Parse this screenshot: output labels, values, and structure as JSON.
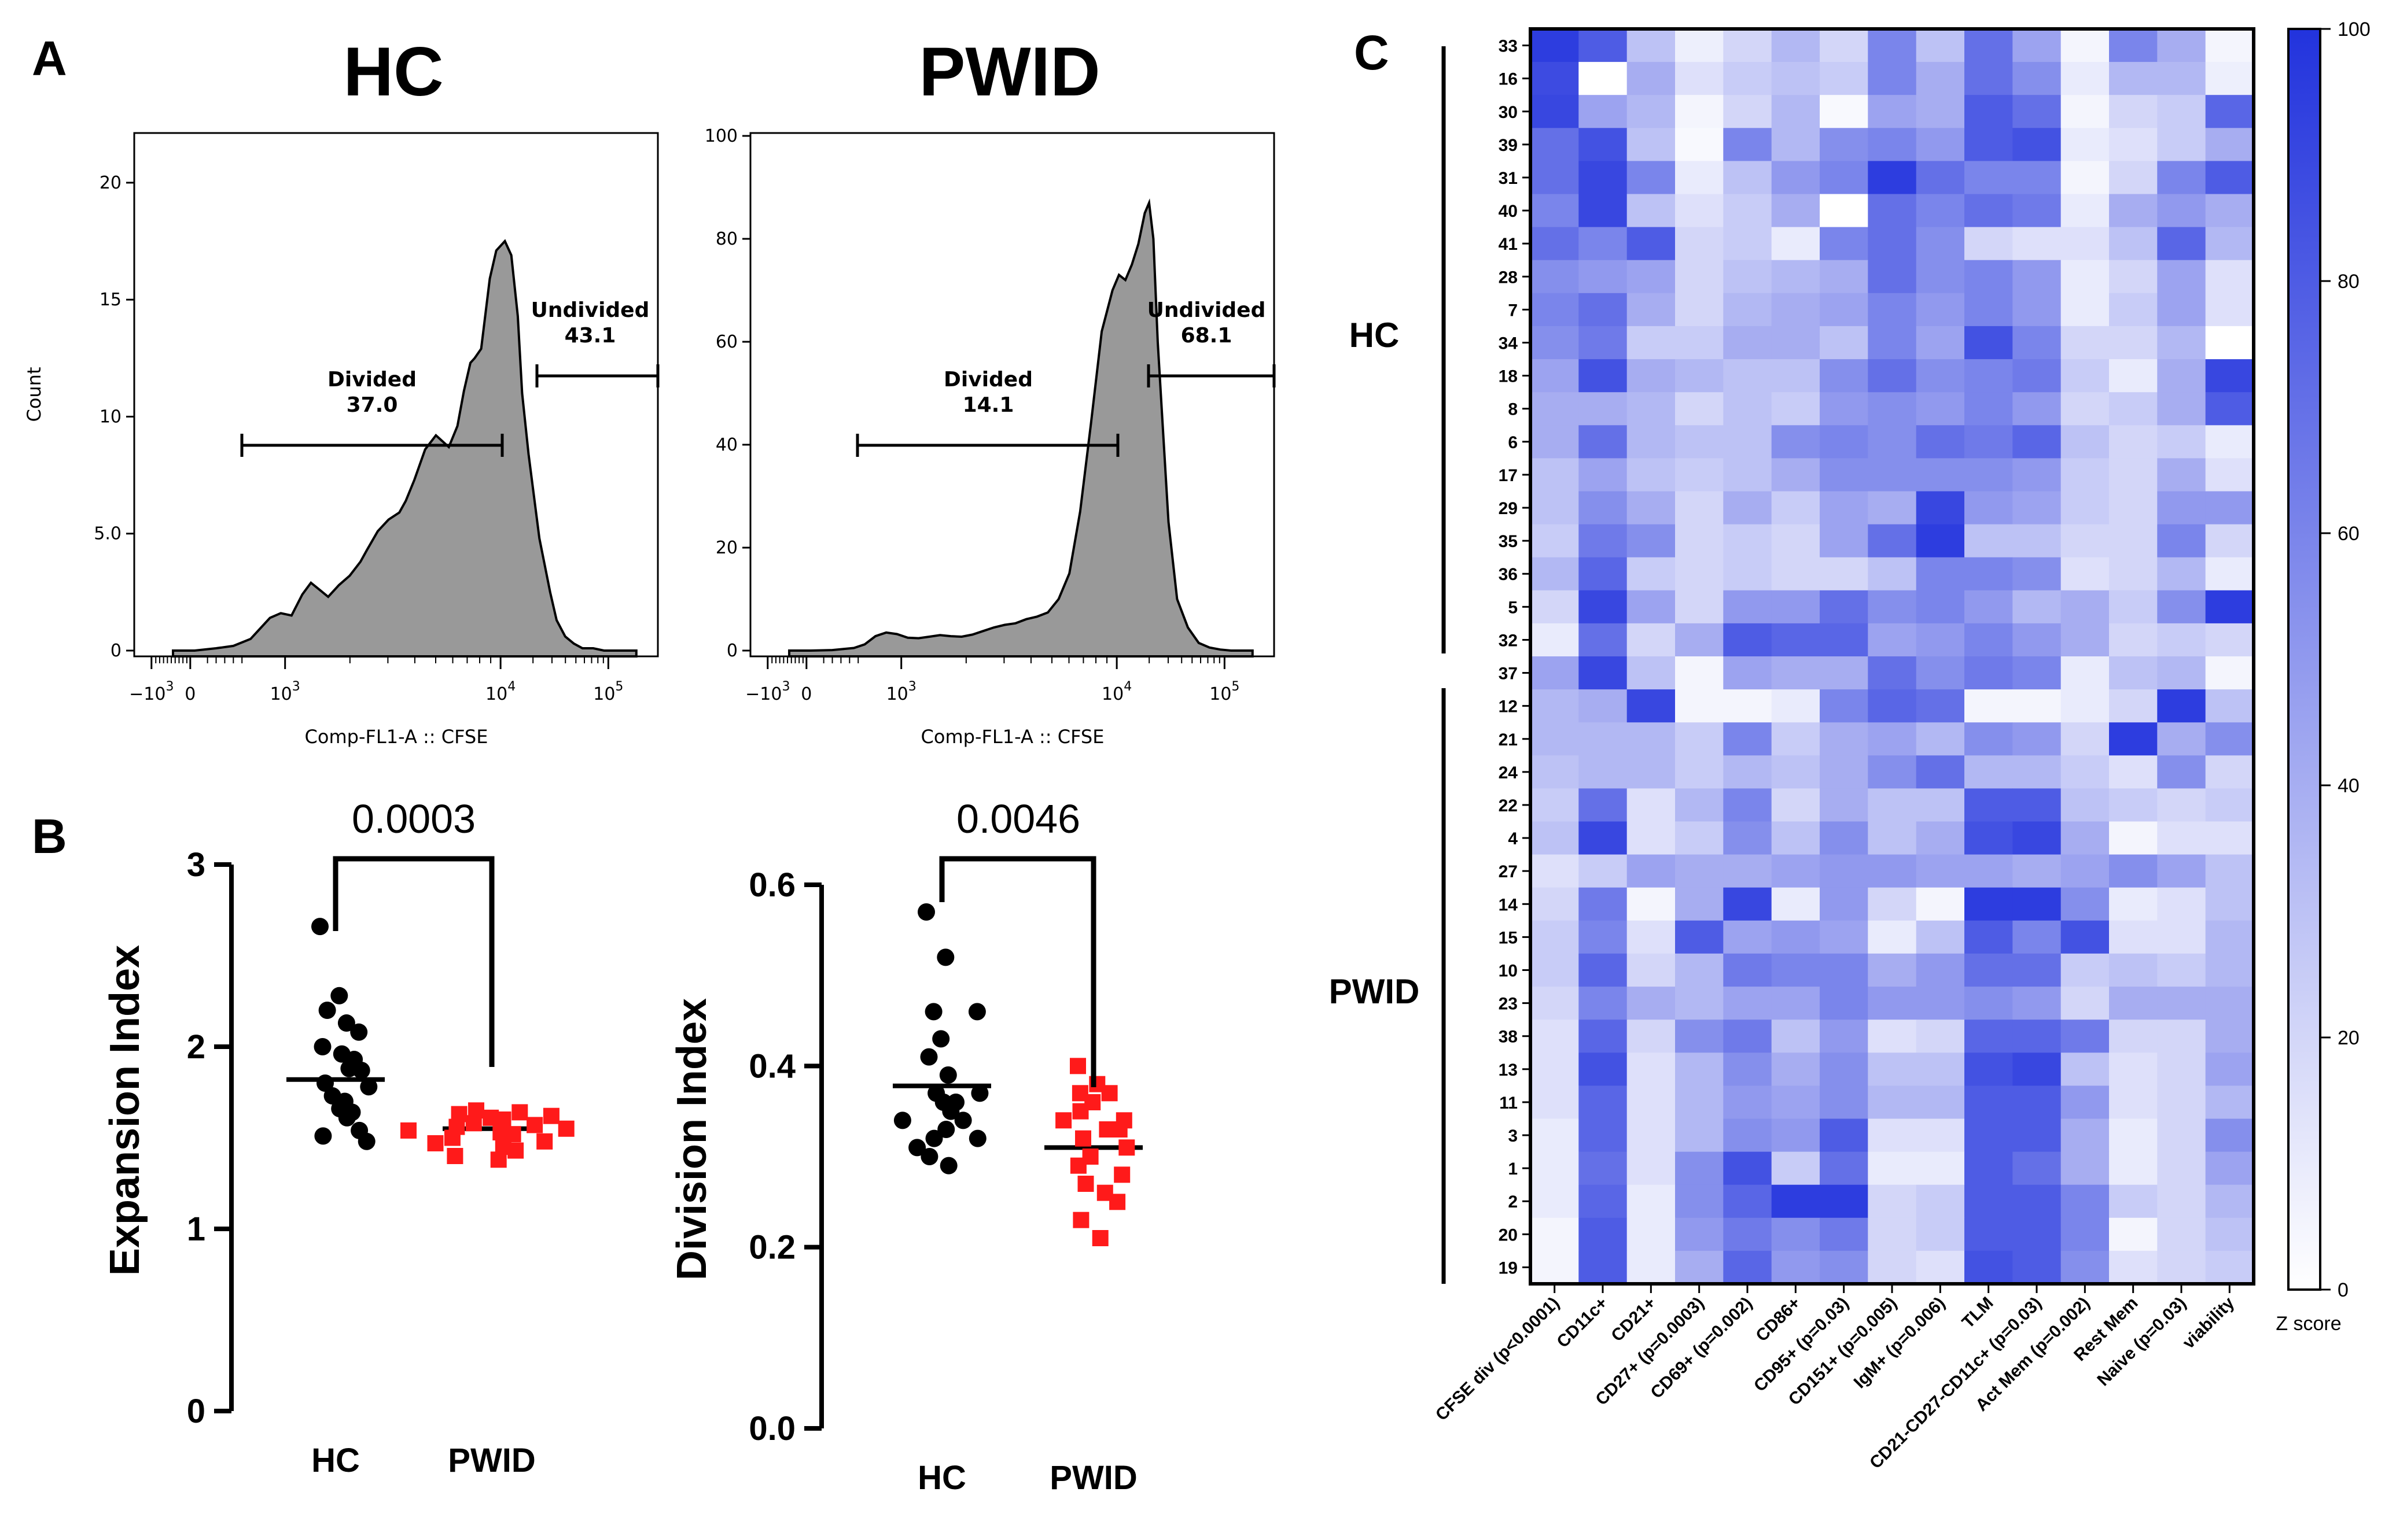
{
  "panels": {
    "a": "A",
    "b": "B",
    "c": "C"
  },
  "chart_data": [
    {
      "type": "area",
      "id": "hist_hc",
      "title": "HC",
      "xlabel": "Comp-FL1-A :: CFSE",
      "ylabel": "Count",
      "ylim": [
        0,
        22
      ],
      "yticks": [
        0,
        5,
        10,
        15,
        20
      ],
      "ytick_labels": [
        "0",
        "5.0",
        "10",
        "15",
        "20"
      ],
      "xticks": [
        "-10^3",
        "0",
        "10^3",
        "10^4",
        "10^5"
      ],
      "x": [
        0.1,
        0.2,
        0.3,
        0.38,
        0.46,
        0.5,
        0.55,
        0.6,
        0.65,
        0.7,
        0.74,
        0.78,
        0.82,
        0.87,
        0.92,
        0.97,
        1.0,
        1.05,
        1.1,
        1.15,
        1.18,
        1.22,
        1.27,
        1.32,
        1.38,
        1.42,
        1.45,
        1.48,
        1.5,
        1.53,
        1.57,
        1.6,
        1.64,
        1.67,
        1.7,
        1.72,
        1.75,
        1.8,
        1.85,
        1.88,
        1.92,
        1.96,
        2.0,
        2.05,
        2.1,
        2.15,
        2.2,
        2.25
      ],
      "y": [
        0.0,
        0.0,
        0.1,
        0.2,
        0.5,
        0.9,
        1.4,
        1.6,
        1.5,
        2.4,
        2.9,
        2.6,
        2.3,
        2.8,
        3.2,
        3.8,
        4.3,
        5.1,
        5.6,
        5.9,
        6.4,
        7.3,
        8.6,
        9.2,
        8.7,
        9.6,
        11.1,
        12.3,
        12.5,
        12.9,
        15.9,
        17.1,
        17.5,
        16.9,
        14.3,
        11.0,
        8.4,
        4.8,
        2.5,
        1.3,
        0.6,
        0.3,
        0.1,
        0.1,
        0.0,
        0.0,
        0.0,
        0.0
      ],
      "gates": [
        {
          "name": "Divided",
          "value": "37.0"
        },
        {
          "name": "Undivided",
          "value": "43.1"
        }
      ]
    },
    {
      "type": "area",
      "id": "hist_pwid",
      "title": "PWID",
      "xlabel": "Comp-FL1-A :: CFSE",
      "ylabel": "",
      "ylim": [
        0,
        100
      ],
      "yticks": [
        0,
        20,
        40,
        60,
        80,
        100
      ],
      "ytick_labels": [
        "0",
        "20",
        "40",
        "60",
        "80",
        "100"
      ],
      "xticks": [
        "-10^3",
        "0",
        "10^3",
        "10^4",
        "10^5"
      ],
      "x": [
        0.1,
        0.2,
        0.3,
        0.4,
        0.45,
        0.5,
        0.55,
        0.6,
        0.65,
        0.7,
        0.75,
        0.8,
        0.85,
        0.9,
        0.95,
        1.0,
        1.05,
        1.1,
        1.15,
        1.2,
        1.25,
        1.3,
        1.35,
        1.4,
        1.45,
        1.5,
        1.55,
        1.6,
        1.63,
        1.66,
        1.69,
        1.72,
        1.75,
        1.77,
        1.79,
        1.81,
        1.83,
        1.86,
        1.9,
        1.95,
        2.0,
        2.05,
        2.1,
        2.15,
        2.2,
        2.25
      ],
      "y": [
        0.0,
        0.0,
        0.1,
        0.5,
        1.2,
        2.8,
        3.5,
        3.2,
        2.5,
        2.4,
        2.7,
        3.0,
        2.8,
        2.7,
        3.1,
        3.8,
        4.5,
        5.0,
        5.3,
        6.1,
        6.6,
        7.4,
        10.0,
        15.0,
        27.0,
        44.0,
        62.0,
        70.0,
        73.0,
        72.0,
        75.0,
        79.0,
        85.0,
        87.0,
        80.0,
        60.0,
        46.0,
        25.0,
        10.0,
        4.5,
        1.5,
        0.6,
        0.2,
        0.0,
        0.0,
        0.0
      ],
      "gates": [
        {
          "name": "Divided",
          "value": "14.1"
        },
        {
          "name": "Undivided",
          "value": "68.1"
        }
      ]
    },
    {
      "type": "scatter",
      "id": "expansion",
      "ylabel": "Expansion Index",
      "ylim": [
        0,
        3
      ],
      "yticks": [
        "0",
        "1",
        "2",
        "3"
      ],
      "categories": [
        "HC",
        "PWID"
      ],
      "p_value": "0.0003",
      "series": [
        {
          "name": "HC",
          "color": "#000000",
          "marker": "circle",
          "mean": 1.82,
          "values": [
            2.66,
            2.28,
            2.2,
            2.13,
            2.08,
            2.0,
            1.96,
            1.93,
            1.88,
            1.87,
            1.8,
            1.78,
            1.73,
            1.7,
            1.66,
            1.64,
            1.61,
            1.54,
            1.51,
            1.48
          ]
        },
        {
          "name": "PWID",
          "color": "#ff1a1a",
          "marker": "square",
          "mean": 1.55,
          "values": [
            1.65,
            1.64,
            1.63,
            1.62,
            1.61,
            1.6,
            1.58,
            1.57,
            1.56,
            1.55,
            1.54,
            1.53,
            1.52,
            1.5,
            1.48,
            1.47,
            1.45,
            1.43,
            1.4,
            1.38
          ]
        }
      ]
    },
    {
      "type": "scatter",
      "id": "division",
      "ylabel": "Division Index",
      "ylim": [
        0,
        0.6
      ],
      "yticks": [
        "0.0",
        "0.2",
        "0.4",
        "0.6"
      ],
      "categories": [
        "HC",
        "PWID"
      ],
      "p_value": "0.0046",
      "series": [
        {
          "name": "HC",
          "color": "#000000",
          "marker": "circle",
          "mean": 0.378,
          "values": [
            0.57,
            0.52,
            0.46,
            0.46,
            0.43,
            0.41,
            0.39,
            0.37,
            0.37,
            0.36,
            0.36,
            0.35,
            0.34,
            0.34,
            0.33,
            0.32,
            0.32,
            0.31,
            0.3,
            0.29
          ]
        },
        {
          "name": "PWID",
          "color": "#ff1a1a",
          "marker": "square",
          "mean": 0.31,
          "values": [
            0.4,
            0.38,
            0.37,
            0.37,
            0.36,
            0.35,
            0.34,
            0.34,
            0.33,
            0.33,
            0.32,
            0.31,
            0.3,
            0.29,
            0.28,
            0.27,
            0.26,
            0.25,
            0.23,
            0.21
          ]
        }
      ]
    },
    {
      "type": "heatmap",
      "id": "heatmap",
      "colorbar": {
        "label": "Z score",
        "min": 0,
        "max": 100,
        "ticks": [
          "0",
          "20",
          "40",
          "60",
          "80",
          "100"
        ],
        "color_low": "#ffffff",
        "color_high": "#2233dd"
      },
      "groups": [
        {
          "name": "HC",
          "rows": [
            "33",
            "16",
            "30",
            "39",
            "31",
            "40",
            "41",
            "28",
            "7",
            "34",
            "18",
            "8",
            "6",
            "17",
            "29",
            "35",
            "36",
            "5",
            "32"
          ]
        },
        {
          "name": "PWID",
          "rows": [
            "37",
            "12",
            "21",
            "24",
            "22",
            "4",
            "27",
            "14",
            "15",
            "10",
            "23",
            "38",
            "13",
            "11",
            "3",
            "1",
            "2",
            "20",
            "19"
          ]
        }
      ],
      "rows": [
        "33",
        "16",
        "30",
        "39",
        "31",
        "40",
        "41",
        "28",
        "7",
        "34",
        "18",
        "8",
        "6",
        "17",
        "29",
        "35",
        "36",
        "5",
        "32",
        "37",
        "12",
        "21",
        "24",
        "22",
        "4",
        "27",
        "14",
        "15",
        "10",
        "23",
        "38",
        "13",
        "11",
        "3",
        "1",
        "2",
        "20",
        "19"
      ],
      "columns": [
        "CFSE div (p<0.0001)",
        "CD11c+",
        "CD21+",
        "CD27+ (p=0.0003)",
        "CD69+ (p=0.002)",
        "CD86+",
        "CD95+ (p=0.03)",
        "CD151+ (p=0.005)",
        "IgM+ (p=0.006)",
        "TLM",
        "CD21-CD27-CD11c+ (p=0.03)",
        "Act Mem (p=0.002)",
        "Rest Mem",
        "Naive (p=0.03)",
        "viability"
      ],
      "values": [
        [
          95,
          80,
          30,
          8,
          20,
          35,
          20,
          60,
          30,
          70,
          45,
          5,
          60,
          40,
          5
        ],
        [
          88,
          0,
          40,
          15,
          25,
          30,
          25,
          60,
          40,
          70,
          55,
          10,
          35,
          35,
          8
        ],
        [
          90,
          45,
          35,
          5,
          20,
          35,
          3,
          45,
          40,
          80,
          70,
          5,
          20,
          25,
          75
        ],
        [
          70,
          85,
          30,
          3,
          60,
          35,
          55,
          60,
          50,
          80,
          85,
          10,
          15,
          25,
          40
        ],
        [
          70,
          90,
          60,
          10,
          30,
          50,
          60,
          95,
          70,
          60,
          60,
          5,
          20,
          60,
          80
        ],
        [
          60,
          90,
          30,
          15,
          25,
          40,
          0,
          70,
          60,
          70,
          65,
          10,
          40,
          50,
          40
        ],
        [
          70,
          60,
          80,
          20,
          25,
          10,
          60,
          70,
          55,
          20,
          15,
          15,
          30,
          75,
          35
        ],
        [
          55,
          50,
          45,
          20,
          30,
          35,
          40,
          70,
          55,
          60,
          50,
          10,
          20,
          45,
          15
        ],
        [
          60,
          70,
          40,
          20,
          35,
          40,
          45,
          60,
          50,
          60,
          50,
          10,
          25,
          45,
          15
        ],
        [
          55,
          65,
          25,
          25,
          40,
          40,
          30,
          60,
          45,
          85,
          60,
          20,
          20,
          35,
          0
        ],
        [
          45,
          85,
          40,
          35,
          30,
          30,
          55,
          70,
          55,
          60,
          65,
          25,
          10,
          40,
          90
        ],
        [
          40,
          40,
          35,
          20,
          30,
          25,
          50,
          55,
          50,
          60,
          50,
          20,
          25,
          40,
          80
        ],
        [
          40,
          70,
          35,
          30,
          30,
          55,
          60,
          55,
          70,
          65,
          75,
          30,
          20,
          25,
          10
        ],
        [
          30,
          45,
          30,
          25,
          30,
          40,
          55,
          55,
          55,
          55,
          50,
          25,
          20,
          40,
          15
        ],
        [
          30,
          55,
          40,
          20,
          40,
          25,
          45,
          40,
          90,
          50,
          45,
          25,
          20,
          50,
          50
        ],
        [
          25,
          65,
          55,
          20,
          25,
          20,
          45,
          70,
          95,
          30,
          30,
          20,
          20,
          60,
          20
        ],
        [
          35,
          75,
          25,
          20,
          25,
          20,
          20,
          30,
          60,
          60,
          55,
          15,
          20,
          35,
          10
        ],
        [
          20,
          90,
          45,
          20,
          50,
          50,
          70,
          55,
          60,
          50,
          35,
          40,
          25,
          55,
          95
        ],
        [
          10,
          70,
          20,
          40,
          80,
          75,
          75,
          45,
          50,
          60,
          50,
          40,
          20,
          25,
          20
        ],
        [
          45,
          90,
          30,
          5,
          45,
          40,
          40,
          70,
          55,
          65,
          60,
          10,
          30,
          35,
          5
        ],
        [
          35,
          40,
          90,
          5,
          5,
          10,
          60,
          75,
          70,
          5,
          5,
          10,
          20,
          95,
          30
        ],
        [
          35,
          35,
          35,
          25,
          60,
          25,
          40,
          45,
          35,
          55,
          50,
          20,
          95,
          40,
          55
        ],
        [
          30,
          35,
          35,
          25,
          35,
          30,
          40,
          55,
          70,
          35,
          35,
          25,
          15,
          55,
          20
        ],
        [
          25,
          70,
          15,
          35,
          60,
          20,
          40,
          30,
          30,
          80,
          80,
          30,
          25,
          20,
          25
        ],
        [
          30,
          90,
          15,
          25,
          55,
          30,
          55,
          30,
          40,
          85,
          90,
          40,
          5,
          15,
          15
        ],
        [
          15,
          25,
          45,
          40,
          40,
          45,
          50,
          50,
          45,
          45,
          40,
          45,
          55,
          45,
          30
        ],
        [
          20,
          65,
          5,
          40,
          90,
          10,
          50,
          20,
          5,
          95,
          95,
          55,
          10,
          15,
          30
        ],
        [
          25,
          60,
          15,
          80,
          45,
          50,
          45,
          10,
          30,
          80,
          60,
          85,
          15,
          15,
          35
        ],
        [
          25,
          75,
          20,
          35,
          65,
          60,
          60,
          40,
          50,
          70,
          70,
          25,
          30,
          25,
          35
        ],
        [
          20,
          60,
          40,
          35,
          45,
          45,
          60,
          50,
          50,
          55,
          50,
          20,
          40,
          40,
          40
        ],
        [
          15,
          75,
          20,
          55,
          65,
          30,
          50,
          15,
          20,
          75,
          75,
          65,
          20,
          20,
          40
        ],
        [
          15,
          85,
          15,
          35,
          55,
          40,
          55,
          30,
          30,
          85,
          90,
          30,
          15,
          20,
          45
        ],
        [
          15,
          75,
          15,
          35,
          50,
          45,
          55,
          35,
          35,
          80,
          80,
          50,
          15,
          20,
          35
        ],
        [
          10,
          75,
          15,
          35,
          55,
          50,
          80,
          15,
          15,
          80,
          80,
          40,
          10,
          20,
          55
        ],
        [
          10,
          70,
          15,
          55,
          85,
          25,
          70,
          10,
          10,
          80,
          70,
          40,
          10,
          20,
          45
        ],
        [
          10,
          75,
          10,
          55,
          75,
          95,
          95,
          20,
          25,
          80,
          80,
          60,
          25,
          20,
          35
        ],
        [
          5,
          80,
          10,
          50,
          65,
          55,
          65,
          20,
          25,
          80,
          80,
          60,
          5,
          20,
          30
        ],
        [
          5,
          80,
          10,
          40,
          75,
          50,
          55,
          20,
          15,
          85,
          80,
          55,
          15,
          20,
          25
        ]
      ]
    }
  ]
}
